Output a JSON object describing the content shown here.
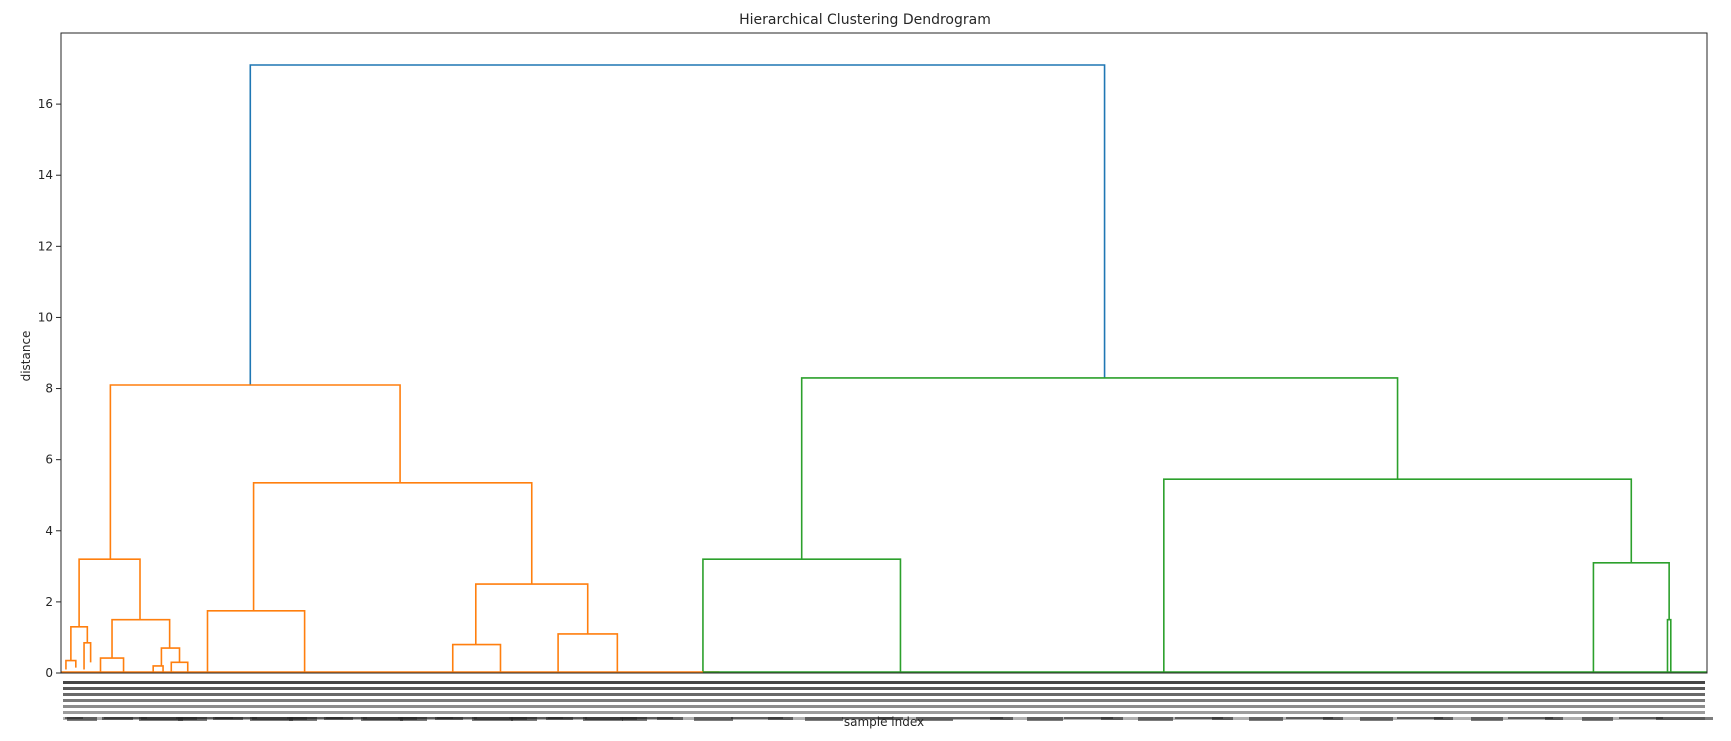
{
  "chart_data": {
    "type": "dendrogram",
    "title": "Hierarchical Clustering Dendrogram",
    "xlabel": "sample index",
    "ylabel": "distance",
    "ylim": [
      0,
      18
    ],
    "yticks": [
      0,
      2,
      4,
      6,
      8,
      10,
      12,
      14,
      16
    ],
    "xlim": [
      0,
      1000
    ],
    "grid": false,
    "colors": {
      "root": "#1f77b4",
      "cluster1": "#ff7f0e",
      "cluster2": "#2ca02c"
    },
    "links": [
      {
        "id": "root",
        "color": "root",
        "x1": 115,
        "x2": 634,
        "y1l": 8.1,
        "y1r": 8.3,
        "y": 17.1
      },
      {
        "id": "o-top",
        "color": "cluster1",
        "x1": 30,
        "x2": 206,
        "y1l": 3.2,
        "y1r": 5.35,
        "y": 8.1
      },
      {
        "id": "o-a",
        "color": "cluster1",
        "x1": 11,
        "x2": 48,
        "y1l": 1.3,
        "y1r": 1.5,
        "y": 3.2
      },
      {
        "id": "o-a1",
        "color": "cluster1",
        "x1": 6,
        "x2": 16,
        "y1l": 0.35,
        "y1r": 0.85,
        "y": 1.3
      },
      {
        "id": "o-a1a",
        "color": "cluster1",
        "x1": 3,
        "x2": 9,
        "y1l": 0.1,
        "y1r": 0.15,
        "y": 0.35
      },
      {
        "id": "o-a1b",
        "color": "cluster1",
        "x1": 14,
        "x2": 18,
        "y1l": 0.1,
        "y1r": 0.3,
        "y": 0.85
      },
      {
        "id": "o-a2",
        "color": "cluster1",
        "x1": 31,
        "x2": 66,
        "y1l": 0.42,
        "y1r": 0.7,
        "y": 1.5
      },
      {
        "id": "o-a2a",
        "color": "cluster1",
        "x1": 24,
        "x2": 38,
        "y1l": 0,
        "y1r": 0,
        "y": 0.42
      },
      {
        "id": "o-a2b",
        "color": "cluster1",
        "x1": 61,
        "x2": 72,
        "y1l": 0.2,
        "y1r": 0.3,
        "y": 0.7
      },
      {
        "id": "o-a2b1",
        "color": "cluster1",
        "x1": 56,
        "x2": 62,
        "y1l": 0,
        "y1r": 0,
        "y": 0.2
      },
      {
        "id": "o-a2b2",
        "color": "cluster1",
        "x1": 67,
        "x2": 77,
        "y1l": 0,
        "y1r": 0,
        "y": 0.3
      },
      {
        "id": "o-b",
        "color": "cluster1",
        "x1": 117,
        "x2": 286,
        "y1l": 1.75,
        "y1r": 2.5,
        "y": 5.35
      },
      {
        "id": "o-b1",
        "color": "cluster1",
        "x1": 89,
        "x2": 148,
        "y1l": 0,
        "y1r": 0,
        "y": 1.75
      },
      {
        "id": "o-b2",
        "color": "cluster1",
        "x1": 252,
        "x2": 320,
        "y1l": 0.8,
        "y1r": 1.1,
        "y": 2.5
      },
      {
        "id": "o-b2a",
        "color": "cluster1",
        "x1": 238,
        "x2": 267,
        "y1l": 0,
        "y1r": 0,
        "y": 0.8
      },
      {
        "id": "o-b2b",
        "color": "cluster1",
        "x1": 302,
        "x2": 338,
        "y1l": 0,
        "y1r": 0,
        "y": 1.1
      },
      {
        "id": "g-top",
        "color": "cluster2",
        "x1": 450,
        "x2": 812,
        "y1l": 3.2,
        "y1r": 5.45,
        "y": 8.3
      },
      {
        "id": "g-a",
        "color": "cluster2",
        "x1": 390,
        "x2": 510,
        "y1l": 0,
        "y1r": 0,
        "y": 3.2
      },
      {
        "id": "g-b",
        "color": "cluster2",
        "x1": 670,
        "x2": 954,
        "y1l": 0,
        "y1r": 3.1,
        "y": 5.45
      },
      {
        "id": "g-b2",
        "color": "cluster2",
        "x1": 931,
        "x2": 977,
        "y1l": 0,
        "y1r": 1.5,
        "y": 3.1
      },
      {
        "id": "g-b2a",
        "color": "cluster2",
        "x1": 976,
        "x2": 978,
        "y1l": 0,
        "y1r": 0,
        "y": 1.5
      }
    ]
  }
}
